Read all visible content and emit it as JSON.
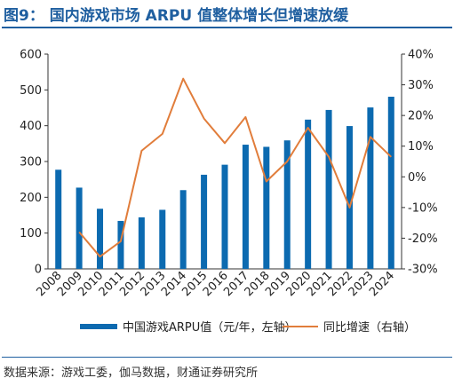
{
  "header": {
    "title": "图9：  国内游戏市场 ARPU 值整体增长但增速放缓"
  },
  "legend": {
    "bar_label": "中国游戏ARPU值（元/年，左轴）",
    "line_label": "同比增速（右轴）"
  },
  "footer": {
    "source": "数据来源：游戏工委，伽马数据，财通证券研究所"
  },
  "colors": {
    "bar": "#0c6ab0",
    "line": "#e17d3b",
    "title": "#1f5fa0"
  },
  "chart_data": {
    "type": "bar",
    "categories": [
      "2008",
      "2009",
      "2010",
      "2011",
      "2012",
      "2013",
      "2014",
      "2015",
      "2016",
      "2017",
      "2018",
      "2019",
      "2020",
      "2021",
      "2022",
      "2023",
      "2024"
    ],
    "series": [
      {
        "name": "中国游戏ARPU值（元/年，左轴）",
        "type": "bar",
        "axis": "left",
        "values": [
          277,
          227,
          168,
          134,
          144,
          165,
          220,
          263,
          291,
          347,
          341,
          359,
          417,
          444,
          399,
          451,
          481
        ]
      },
      {
        "name": "同比增速（右轴）",
        "type": "line",
        "axis": "right",
        "values": [
          null,
          -18,
          -26,
          -21,
          8.5,
          14,
          32,
          19,
          11,
          19.5,
          -1.5,
          5,
          16,
          6.5,
          -10,
          13,
          6.5
        ]
      }
    ],
    "y_left": {
      "lim": [
        0,
        600
      ],
      "ticks": [
        "0",
        "100",
        "200",
        "300",
        "400",
        "500",
        "600"
      ]
    },
    "y_right": {
      "lim": [
        -30,
        40
      ],
      "ticks": [
        "-30%",
        "-20%",
        "-10%",
        "0%",
        "10%",
        "20%",
        "30%",
        "40%"
      ]
    },
    "grid": false,
    "legend_position": "bottom"
  }
}
